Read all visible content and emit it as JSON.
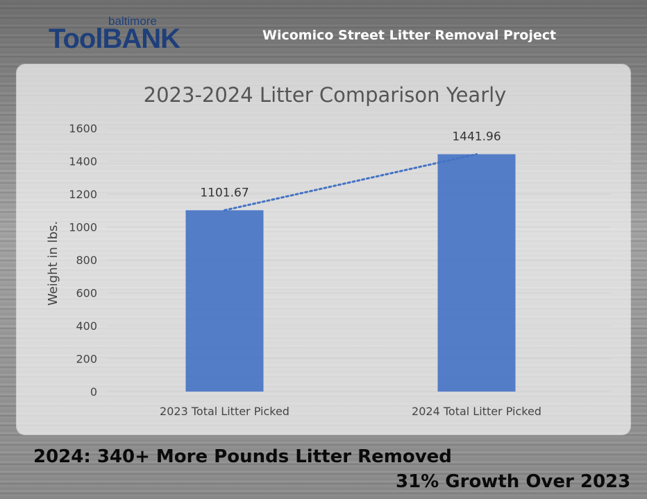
{
  "logo": {
    "small_text": "baltimore",
    "main_text": "ToolBANK"
  },
  "header": {
    "title": "Wicomico Street Litter Removal Project"
  },
  "footer": {
    "line1": "2024: 340+ More Pounds Litter Removed",
    "line2": "31% Growth Over 2023"
  },
  "colors": {
    "bar": "#4472c4",
    "trendline": "#4472c4",
    "brand": "#1e3f7a"
  },
  "chart_data": {
    "type": "bar",
    "title": "2023-2024 Litter Comparison Yearly",
    "xlabel": "",
    "ylabel": "Weight in lbs.",
    "categories": [
      "2023 Total Litter Picked",
      "2024 Total Litter Picked"
    ],
    "values": [
      1101.67,
      1441.96
    ],
    "data_labels": [
      "1101.67",
      "1441.96"
    ],
    "ylim": [
      0,
      1600
    ],
    "yticks": [
      "0",
      "200",
      "400",
      "600",
      "800",
      "1000",
      "1200",
      "1400",
      "1600"
    ],
    "grid": true,
    "trendline": "dotted linear",
    "legend": "none"
  }
}
